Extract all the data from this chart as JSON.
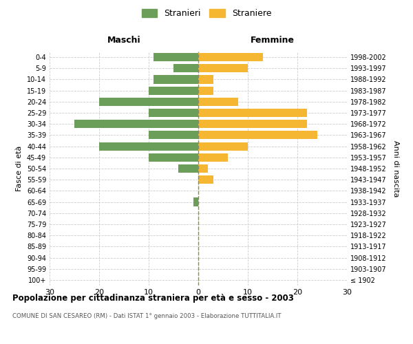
{
  "age_groups": [
    "100+",
    "95-99",
    "90-94",
    "85-89",
    "80-84",
    "75-79",
    "70-74",
    "65-69",
    "60-64",
    "55-59",
    "50-54",
    "45-49",
    "40-44",
    "35-39",
    "30-34",
    "25-29",
    "20-24",
    "15-19",
    "10-14",
    "5-9",
    "0-4"
  ],
  "birth_years": [
    "≤ 1902",
    "1903-1907",
    "1908-1912",
    "1913-1917",
    "1918-1922",
    "1923-1927",
    "1928-1932",
    "1933-1937",
    "1938-1942",
    "1943-1947",
    "1948-1952",
    "1953-1957",
    "1958-1962",
    "1963-1967",
    "1968-1972",
    "1973-1977",
    "1978-1982",
    "1983-1987",
    "1988-1992",
    "1993-1997",
    "1998-2002"
  ],
  "maschi": [
    0,
    0,
    0,
    0,
    0,
    0,
    0,
    1,
    0,
    0,
    4,
    10,
    20,
    10,
    25,
    10,
    20,
    10,
    9,
    5,
    9
  ],
  "femmine": [
    0,
    0,
    0,
    0,
    0,
    0,
    0,
    0,
    0,
    3,
    2,
    6,
    10,
    24,
    22,
    22,
    8,
    3,
    3,
    10,
    13
  ],
  "maschi_color": "#6b9e59",
  "femmine_color": "#f5b731",
  "title": "Popolazione per cittadinanza straniera per età e sesso - 2003",
  "subtitle": "COMUNE DI SAN CESAREO (RM) - Dati ISTAT 1° gennaio 2003 - Elaborazione TUTTITALIA.IT",
  "xlabel_left": "Maschi",
  "xlabel_right": "Femmine",
  "ylabel_left": "Fasce di età",
  "ylabel_right": "Anni di nascita",
  "legend_stranieri": "Stranieri",
  "legend_straniere": "Straniere",
  "xlim": 30,
  "bg_color": "#ffffff",
  "grid_color": "#cccccc",
  "bar_height": 0.75,
  "dashed_line_color": "#888866"
}
